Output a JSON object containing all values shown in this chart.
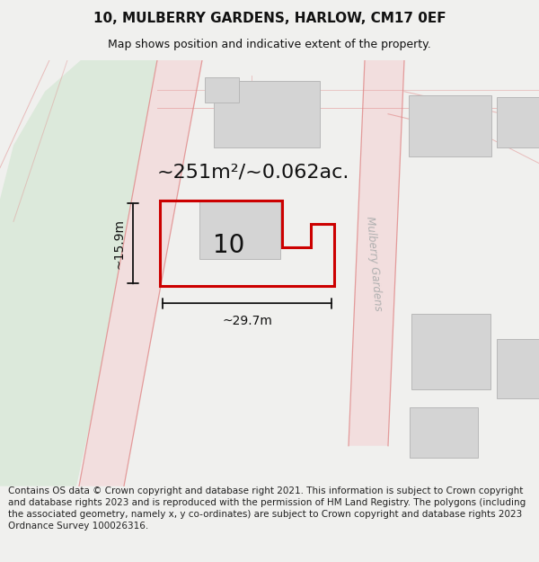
{
  "title": "10, MULBERRY GARDENS, HARLOW, CM17 0EF",
  "subtitle": "Map shows position and indicative extent of the property.",
  "area_text": "~251m²/~0.062ac.",
  "label_number": "10",
  "dim_width": "~29.7m",
  "dim_height": "~15.9m",
  "street_label": "Mulberry Gardens",
  "footer_text": "Contains OS data © Crown copyright and database right 2021. This information is subject to Crown copyright and database rights 2023 and is reproduced with the permission of HM Land Registry. The polygons (including the associated geometry, namely x, y co-ordinates) are subject to Crown copyright and database rights 2023 Ordnance Survey 100026316.",
  "bg_color": "#f0f0ee",
  "map_bg": "#ffffff",
  "green_area_color": "#dce9db",
  "building_fill": "#d4d4d4",
  "building_edge": "#b8b8b8",
  "road_fill": "#f2dede",
  "road_line": "#e08888",
  "plot_fill": "#ffffff",
  "plot_edge": "#cc0000",
  "dim_color": "#111111",
  "street_color": "#b0b0b0",
  "title_fontsize": 11,
  "subtitle_fontsize": 9,
  "area_fontsize": 16,
  "label_fontsize": 20,
  "dim_fontsize": 10,
  "street_fontsize": 8.5,
  "footer_fontsize": 7.5
}
